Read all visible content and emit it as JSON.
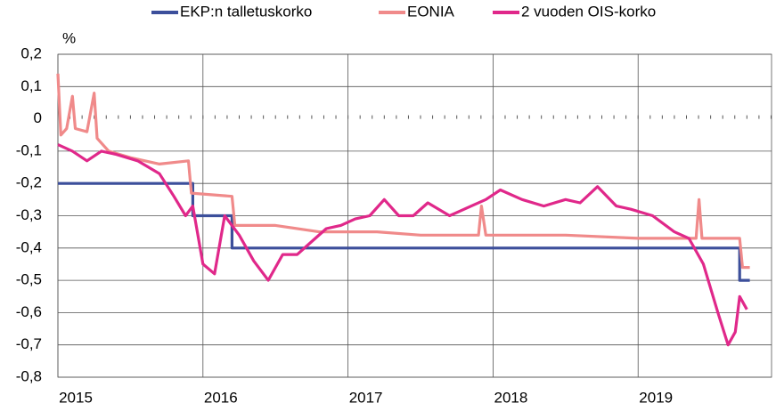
{
  "chart_data": {
    "type": "line",
    "y_label": "%",
    "xlim": [
      2015,
      2019.92
    ],
    "xticks": [
      2015,
      2016,
      2017,
      2018,
      2019
    ],
    "ylim": [
      -0.8,
      0.2
    ],
    "yticks": [
      {
        "value": -0.8,
        "label": "-0,8"
      },
      {
        "value": -0.7,
        "label": "-0,7"
      },
      {
        "value": -0.6,
        "label": "-0,6"
      },
      {
        "value": -0.5,
        "label": "-0,5"
      },
      {
        "value": -0.4,
        "label": "-0,4"
      },
      {
        "value": -0.3,
        "label": "-0,3"
      },
      {
        "value": -0.2,
        "label": "-0,2"
      },
      {
        "value": -0.1,
        "label": "-0,1"
      },
      0,
      {
        "value": 0.1,
        "label": "0,1"
      },
      {
        "value": 0.2,
        "label": "0,2"
      }
    ],
    "grid": true,
    "legend": "top",
    "series": [
      {
        "name": "EKP:n talletuskorko",
        "color": "#3c4f9b",
        "x": [
          2015.0,
          2015.93,
          2015.93,
          2016.2,
          2016.2,
          2019.7,
          2019.7,
          2019.77
        ],
        "values": [
          -0.2,
          -0.2,
          -0.3,
          -0.3,
          -0.4,
          -0.4,
          -0.5,
          -0.5
        ]
      },
      {
        "name": "EONIA",
        "color": "#f08a8a",
        "x": [
          2015.0,
          2015.02,
          2015.06,
          2015.1,
          2015.12,
          2015.2,
          2015.25,
          2015.27,
          2015.35,
          2015.5,
          2015.7,
          2015.9,
          2015.92,
          2016.2,
          2016.22,
          2016.5,
          2016.8,
          2017.2,
          2017.5,
          2017.9,
          2017.92,
          2017.95,
          2018.5,
          2019.0,
          2019.4,
          2019.42,
          2019.44,
          2019.7,
          2019.72,
          2019.77
        ],
        "values": [
          0.14,
          -0.05,
          -0.03,
          0.07,
          -0.03,
          -0.04,
          0.08,
          -0.06,
          -0.1,
          -0.12,
          -0.14,
          -0.13,
          -0.23,
          -0.24,
          -0.33,
          -0.33,
          -0.35,
          -0.35,
          -0.36,
          -0.36,
          -0.27,
          -0.36,
          -0.36,
          -0.37,
          -0.37,
          -0.25,
          -0.37,
          -0.37,
          -0.46,
          -0.46
        ]
      },
      {
        "name": "2 vuoden OIS-korko",
        "color": "#e0288a",
        "x": [
          2015.0,
          2015.1,
          2015.2,
          2015.3,
          2015.4,
          2015.55,
          2015.7,
          2015.8,
          2015.88,
          2015.93,
          2016.0,
          2016.08,
          2016.15,
          2016.25,
          2016.35,
          2016.45,
          2016.55,
          2016.65,
          2016.75,
          2016.85,
          2016.95,
          2017.05,
          2017.15,
          2017.25,
          2017.35,
          2017.45,
          2017.55,
          2017.7,
          2017.85,
          2017.95,
          2018.05,
          2018.2,
          2018.35,
          2018.5,
          2018.6,
          2018.72,
          2018.85,
          2018.95,
          2019.1,
          2019.25,
          2019.35,
          2019.45,
          2019.55,
          2019.62,
          2019.67,
          2019.7,
          2019.75
        ],
        "values": [
          -0.08,
          -0.1,
          -0.13,
          -0.1,
          -0.11,
          -0.13,
          -0.17,
          -0.24,
          -0.3,
          -0.27,
          -0.45,
          -0.48,
          -0.3,
          -0.36,
          -0.44,
          -0.5,
          -0.42,
          -0.42,
          -0.38,
          -0.34,
          -0.33,
          -0.31,
          -0.3,
          -0.25,
          -0.3,
          -0.3,
          -0.26,
          -0.3,
          -0.27,
          -0.25,
          -0.22,
          -0.25,
          -0.27,
          -0.25,
          -0.26,
          -0.21,
          -0.27,
          -0.28,
          -0.3,
          -0.35,
          -0.37,
          -0.45,
          -0.6,
          -0.7,
          -0.66,
          -0.55,
          -0.59
        ]
      }
    ]
  }
}
